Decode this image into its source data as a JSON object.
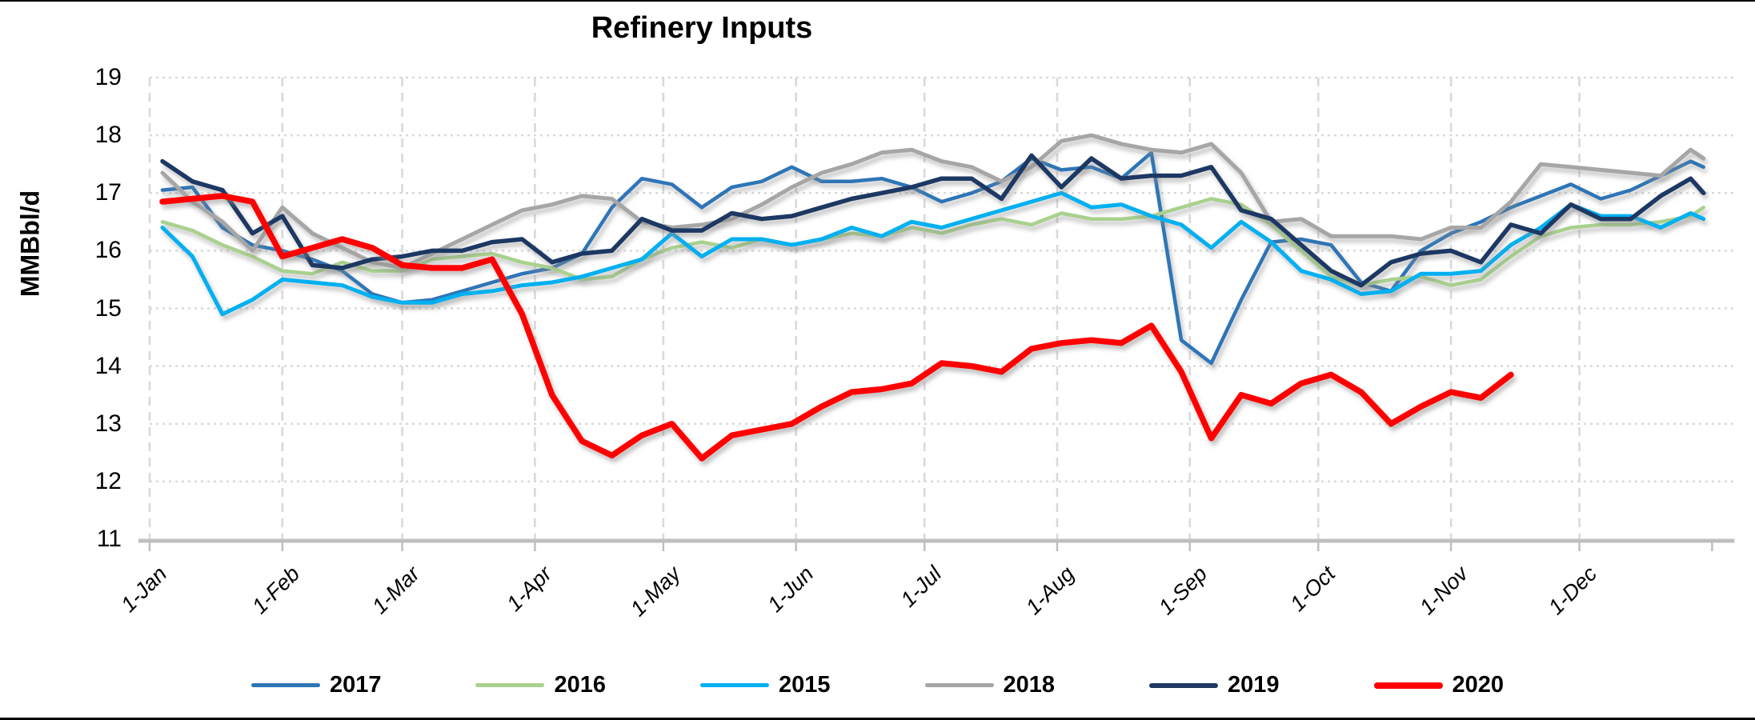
{
  "title": "Refinery Inputs",
  "y_axis": {
    "label": "MMBbl/d",
    "min": 11,
    "max": 19,
    "ticks": [
      19,
      18,
      17,
      16,
      15,
      14,
      13,
      12,
      11
    ]
  },
  "x_axis": {
    "labels": [
      "1-Jan",
      "1-Feb",
      "1-Mar",
      "1-Apr",
      "1-May",
      "1-Jun",
      "1-Jul",
      "1-Aug",
      "1-Sep",
      "1-Oct",
      "1-Nov",
      "1-Dec"
    ],
    "month_start_days": [
      0,
      31,
      59,
      90,
      120,
      151,
      181,
      212,
      243,
      273,
      304,
      334
    ],
    "days_in_year": 365
  },
  "legend": [
    {
      "label": "2017",
      "color": "#2E75B6",
      "thickness": 5
    },
    {
      "label": "2016",
      "color": "#A9D18E",
      "thickness": 5
    },
    {
      "label": "2015",
      "color": "#00B0F0",
      "thickness": 5
    },
    {
      "label": "2018",
      "color": "#A6A6A6",
      "thickness": 5
    },
    {
      "label": "2019",
      "color": "#1F3864",
      "thickness": 6
    },
    {
      "label": "2020",
      "color": "#FF0000",
      "thickness": 8
    }
  ],
  "colors": {
    "gridline": "#D9D9D9",
    "axis_line": "#BFBFBF",
    "text": "#000000",
    "background": "#FFFFFF"
  },
  "chart_data": {
    "type": "line",
    "title": "Refinery Inputs",
    "xlabel": "",
    "ylabel": "MMBbl/d",
    "ylim": [
      11,
      19
    ],
    "grid": true,
    "legend_position": "bottom",
    "x_mode": "weekly: point i is at day_of_year = 3 + 7*i (clamped to 363)",
    "series": [
      {
        "name": "2017",
        "color": "#2E75B6",
        "stroke_width": 4.5,
        "values": [
          17.05,
          17.1,
          16.4,
          16.1,
          16.0,
          15.85,
          15.65,
          15.25,
          15.1,
          15.15,
          15.3,
          15.45,
          15.6,
          15.7,
          15.95,
          16.75,
          17.25,
          17.15,
          16.75,
          17.1,
          17.2,
          17.45,
          17.2,
          17.2,
          17.25,
          17.1,
          16.85,
          17.0,
          17.2,
          17.6,
          17.4,
          17.45,
          17.25,
          17.7,
          14.45,
          14.05,
          15.15,
          16.15,
          16.2,
          16.1,
          15.45,
          15.3,
          16.0,
          16.3,
          16.5,
          16.75,
          16.95,
          17.15,
          16.9,
          17.05,
          17.3,
          17.55,
          17.45
        ]
      },
      {
        "name": "2016",
        "color": "#A9D18E",
        "stroke_width": 4.5,
        "values": [
          16.5,
          16.35,
          16.1,
          15.9,
          15.65,
          15.6,
          15.8,
          15.65,
          15.65,
          15.85,
          15.9,
          15.95,
          15.8,
          15.7,
          15.5,
          15.55,
          15.85,
          16.05,
          16.15,
          16.05,
          16.2,
          16.1,
          16.2,
          16.3,
          16.25,
          16.4,
          16.3,
          16.45,
          16.55,
          16.45,
          16.65,
          16.55,
          16.55,
          16.6,
          16.75,
          16.9,
          16.8,
          16.45,
          16.0,
          15.55,
          15.4,
          15.5,
          15.55,
          15.4,
          15.5,
          15.9,
          16.25,
          16.4,
          16.45,
          16.45,
          16.5,
          16.6,
          16.75
        ]
      },
      {
        "name": "2015",
        "color": "#00B0F0",
        "stroke_width": 5,
        "values": [
          16.4,
          15.9,
          14.9,
          15.15,
          15.5,
          15.45,
          15.4,
          15.2,
          15.1,
          15.1,
          15.25,
          15.3,
          15.4,
          15.45,
          15.55,
          15.7,
          15.85,
          16.3,
          15.9,
          16.2,
          16.2,
          16.1,
          16.2,
          16.4,
          16.25,
          16.5,
          16.4,
          16.55,
          16.7,
          16.85,
          17.0,
          16.75,
          16.8,
          16.6,
          16.45,
          16.05,
          16.5,
          16.15,
          15.65,
          15.5,
          15.25,
          15.3,
          15.6,
          15.6,
          15.65,
          16.1,
          16.4,
          16.8,
          16.6,
          16.6,
          16.4,
          16.65,
          16.55
        ]
      },
      {
        "name": "2018",
        "color": "#A6A6A6",
        "stroke_width": 5,
        "values": [
          17.35,
          16.85,
          16.5,
          16.0,
          16.75,
          16.3,
          16.05,
          15.8,
          15.7,
          15.95,
          16.2,
          16.45,
          16.7,
          16.8,
          16.95,
          16.9,
          16.5,
          16.4,
          16.45,
          16.55,
          16.8,
          17.1,
          17.35,
          17.5,
          17.7,
          17.75,
          17.55,
          17.45,
          17.2,
          17.45,
          17.9,
          18.0,
          17.85,
          17.75,
          17.7,
          17.85,
          17.35,
          16.5,
          16.55,
          16.25,
          16.25,
          16.25,
          16.2,
          16.4,
          16.4,
          16.85,
          17.5,
          17.45,
          17.4,
          17.35,
          17.3,
          17.75,
          17.6
        ]
      },
      {
        "name": "2019",
        "color": "#1F3864",
        "stroke_width": 5.5,
        "values": [
          17.55,
          17.2,
          17.05,
          16.3,
          16.6,
          15.75,
          15.7,
          15.85,
          15.9,
          16.0,
          16.0,
          16.15,
          16.2,
          15.8,
          15.95,
          16.0,
          16.55,
          16.35,
          16.35,
          16.65,
          16.55,
          16.6,
          16.75,
          16.9,
          17.0,
          17.1,
          17.25,
          17.25,
          16.9,
          17.65,
          17.1,
          17.6,
          17.25,
          17.3,
          17.3,
          17.45,
          16.7,
          16.55,
          16.1,
          15.65,
          15.4,
          15.8,
          15.95,
          16.0,
          15.8,
          16.45,
          16.3,
          16.8,
          16.55,
          16.55,
          16.95,
          17.25,
          17.0
        ]
      },
      {
        "name": "2020",
        "color": "#FF0000",
        "stroke_width": 7.5,
        "values": [
          16.85,
          16.9,
          16.95,
          16.85,
          15.9,
          16.05,
          16.2,
          16.05,
          15.75,
          15.7,
          15.7,
          15.85,
          14.9,
          13.5,
          12.7,
          12.45,
          12.8,
          13.0,
          12.4,
          12.8,
          12.9,
          13.0,
          13.3,
          13.55,
          13.6,
          13.7,
          14.05,
          14.0,
          13.9,
          14.3,
          14.4,
          14.45,
          14.4,
          14.7,
          13.9,
          12.75,
          13.5,
          13.35,
          13.7,
          13.85,
          13.55,
          13.0,
          13.3,
          13.55,
          13.45,
          13.85
        ]
      }
    ]
  }
}
